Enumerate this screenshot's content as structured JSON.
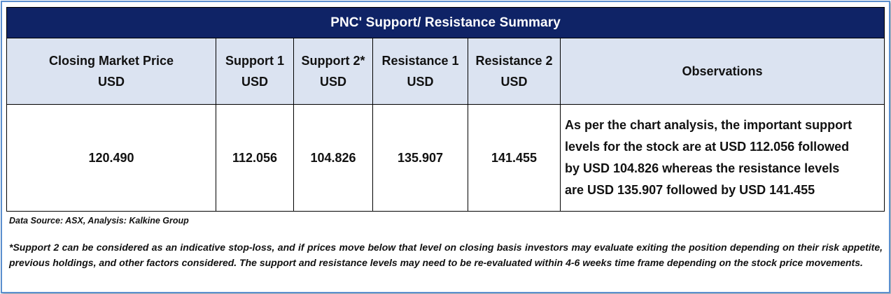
{
  "table": {
    "title": "PNC' Support/  Resistance Summary",
    "headers": [
      {
        "line1": "Closing Market Price",
        "line2": "USD"
      },
      {
        "line1": "Support 1",
        "line2": "USD"
      },
      {
        "line1": "Support 2*",
        "line2": "USD"
      },
      {
        "line1": "Resistance 1",
        "line2": "USD"
      },
      {
        "line1": "Resistance 2",
        "line2": "USD"
      },
      {
        "line1": "Observations",
        "line2": ""
      }
    ],
    "row": {
      "closing_price": "120.490",
      "support_1": "112.056",
      "support_2": "104.826",
      "resistance_1": "135.907",
      "resistance_2": "141.455",
      "observation_lines": [
        "As per the chart analysis, the important support",
        "levels for the stock are at USD 112.056 followed",
        "by USD 104.826 whereas the resistance levels",
        "are USD 135.907 followed by USD 141.455"
      ]
    }
  },
  "footer": {
    "source": "Data Source: ASX, Analysis: Kalkine Group",
    "note": "*Support 2 can be considered as an indicative stop-loss, and if prices move below that level on closing basis investors may evaluate exiting the position depending on their risk appetite, previous holdings, and other factors considered. The support and resistance levels may need to be re-evaluated within 4-6 weeks time frame depending on the stock price movements."
  },
  "colors": {
    "title_background": "#0f2366",
    "header_background": "#dbe3f1",
    "frame_border": "#5b8fce"
  }
}
